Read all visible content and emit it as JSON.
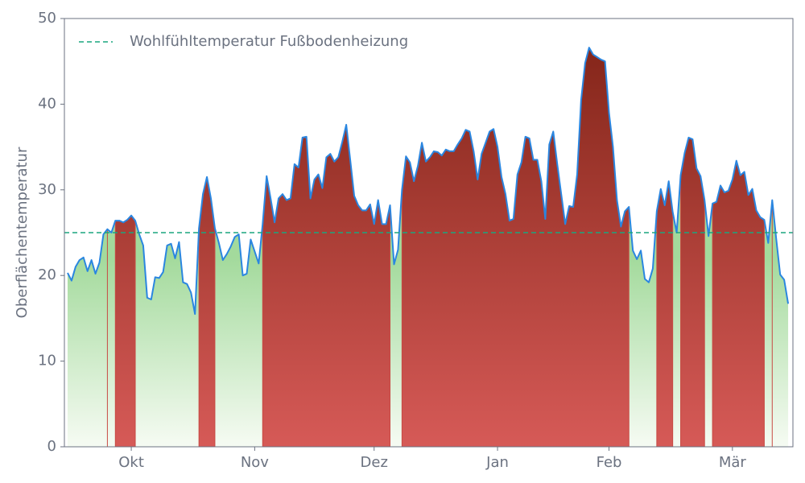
{
  "chart_data": {
    "type": "line",
    "ylabel": "Oberflächentemperatur",
    "threshold": 25,
    "threshold_label": "Wohlfühltemperatur Fußbodenheizung",
    "threshold_color": "#1aa67e",
    "x": [
      -16,
      -15,
      -14,
      -13,
      -12,
      -11,
      -10,
      -9,
      -8,
      -7,
      -6,
      -5,
      -4,
      -3,
      -2,
      -1,
      0,
      1,
      2,
      3,
      4,
      5,
      6,
      7,
      8,
      9,
      10,
      11,
      12,
      13,
      14,
      15,
      16,
      17,
      18,
      19,
      20,
      21,
      22,
      23,
      24,
      25,
      26,
      27,
      28,
      29,
      30,
      31,
      32,
      33,
      34,
      35,
      36,
      37,
      38,
      39,
      40,
      41,
      42,
      43,
      44,
      45,
      46,
      47,
      48,
      49,
      50,
      51,
      52,
      53,
      54,
      55,
      56,
      57,
      58,
      59,
      60,
      61,
      62,
      63,
      64,
      65,
      66,
      67,
      68,
      69,
      70,
      71,
      72,
      73,
      74,
      75,
      76,
      77,
      78,
      79,
      80,
      81,
      82,
      83,
      84,
      85,
      86,
      87,
      88,
      89,
      90,
      91,
      92,
      93,
      94,
      95,
      96,
      97,
      98,
      99,
      100,
      101,
      102,
      103,
      104,
      105,
      106,
      107,
      108,
      109,
      110,
      111,
      112,
      113,
      114,
      115,
      116,
      117,
      118,
      119,
      120,
      121,
      122,
      123,
      124,
      125,
      126,
      127,
      128,
      129,
      130,
      131,
      132,
      133,
      134,
      135,
      136,
      137,
      138,
      139,
      140,
      141,
      142,
      143,
      144,
      145,
      146,
      147,
      148,
      149,
      150,
      151,
      152,
      153,
      154,
      155,
      156,
      157,
      158,
      159,
      160,
      161,
      162,
      163,
      164,
      165
    ],
    "series": [
      {
        "name": "Oberflächentemperatur",
        "color": "#2a86e0",
        "values": [
          20.3,
          19.4,
          21,
          21.8,
          22.1,
          20.5,
          21.8,
          20.2,
          21.5,
          24.8,
          25.4,
          25,
          26.4,
          26.4,
          26.2,
          26.5,
          27,
          26.4,
          24.8,
          23.5,
          17.4,
          17.2,
          19.8,
          19.7,
          20.4,
          23.5,
          23.7,
          22,
          23.9,
          19.2,
          19,
          18,
          15.5,
          25.5,
          29.5,
          31.5,
          29,
          25.5,
          23.8,
          21.8,
          22.5,
          23.4,
          24.5,
          24.8,
          20,
          20.2,
          24.2,
          22.8,
          21.4,
          26,
          31.6,
          29,
          26.2,
          29,
          29.5,
          28.8,
          29,
          33,
          32.6,
          36.1,
          36.2,
          29,
          31.2,
          31.8,
          30.2,
          33.8,
          34.2,
          33.3,
          33.8,
          35.6,
          37.6,
          33.5,
          29.3,
          28.2,
          27.6,
          27.6,
          28.3,
          26,
          28.8,
          26,
          26,
          28.2,
          21.3,
          23,
          30,
          33.9,
          33.2,
          31,
          32.8,
          35.5,
          33.3,
          33.8,
          34.5,
          34.4,
          34,
          34.7,
          34.5,
          34.5,
          35.3,
          36,
          37,
          36.8,
          34.5,
          31.2,
          34.2,
          35.5,
          36.8,
          37.1,
          35,
          31.5,
          29.5,
          26.4,
          26.6,
          31.8,
          33.2,
          36.2,
          36,
          33.5,
          33.5,
          31,
          26.6,
          35.3,
          36.8,
          33,
          29.5,
          26,
          28.1,
          28,
          31.8,
          40.5,
          44.8,
          46.6,
          45.8,
          45.5,
          45.2,
          45,
          39,
          35,
          28.8,
          25.7,
          27.5,
          28,
          22.9,
          21.9,
          22.9,
          19.6,
          19.2,
          20.8,
          27.5,
          30.1,
          28.2,
          31,
          27.4,
          25,
          31.7,
          34.3,
          36.1,
          35.9,
          32.5,
          31.6,
          28.8,
          24.6,
          28.4,
          28.6,
          30.5,
          29.7,
          29.9,
          31.2,
          33.4,
          31.7,
          32.1,
          29.4,
          30.1,
          27.6,
          26.8,
          26.5,
          23.8,
          28.8,
          24.3,
          20.1,
          19.5,
          16.7
        ]
      }
    ],
    "xlim": [
      -16.8,
      166.2
    ],
    "xticks": [
      {
        "value": 0,
        "label": "Okt"
      },
      {
        "value": 31,
        "label": "Nov"
      },
      {
        "value": 61,
        "label": "Dez"
      },
      {
        "value": 92,
        "label": "Jan"
      },
      {
        "value": 120,
        "label": "Feb"
      },
      {
        "value": 151,
        "label": "Mär"
      }
    ],
    "ylim": [
      0,
      50
    ],
    "yticks": [
      0,
      10,
      20,
      30,
      40,
      50
    ],
    "legend": "upper left"
  }
}
